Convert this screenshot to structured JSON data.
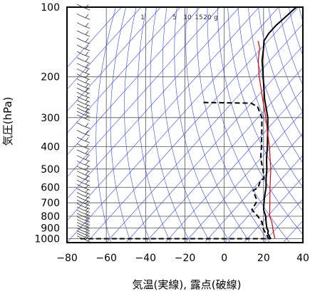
{
  "chart_data": {
    "type": "line",
    "subtype": "skew-T log-p sounding",
    "xlabel": "気温(実線), 露点(破線)",
    "ylabel": "気圧(hPa)",
    "xlim": [
      -80,
      40
    ],
    "ylim": [
      1040,
      100
    ],
    "y_scale": "log",
    "grid": true,
    "x_ticks": [
      -80,
      -60,
      -40,
      -20,
      0,
      20,
      40
    ],
    "x_tick_labels": [
      "−80",
      "−60",
      "−40",
      "−20",
      "0",
      "20",
      "40"
    ],
    "y_ticks": [
      100,
      200,
      300,
      400,
      500,
      600,
      700,
      800,
      900,
      1000
    ],
    "y_tick_labels": [
      "100",
      "200",
      "300",
      "400",
      "500",
      "600",
      "700",
      "800",
      "900",
      "1000"
    ],
    "mixing_ratio_labels": [
      "1",
      "5",
      "10",
      "15",
      "20",
      "g"
    ],
    "series": [
      {
        "role": "temperature",
        "color": "#000000",
        "dash": "solid",
        "points": [
          [
            1000,
            22
          ],
          [
            990,
            21
          ],
          [
            975,
            20
          ],
          [
            950,
            18
          ],
          [
            925,
            17
          ],
          [
            900,
            15
          ],
          [
            850,
            12
          ],
          [
            800,
            9
          ],
          [
            750,
            5
          ],
          [
            700,
            2
          ],
          [
            650,
            -1
          ],
          [
            600,
            -4
          ],
          [
            550,
            -8
          ],
          [
            500,
            -12
          ],
          [
            450,
            -17
          ],
          [
            400,
            -22
          ],
          [
            350,
            -28
          ],
          [
            300,
            -35
          ],
          [
            250,
            -45
          ],
          [
            200,
            -56
          ],
          [
            170,
            -64
          ],
          [
            150,
            -69
          ],
          [
            140,
            -72
          ],
          [
            130,
            -73
          ],
          [
            120,
            -73
          ],
          [
            110,
            -72
          ],
          [
            100,
            -71
          ]
        ]
      },
      {
        "role": "dewpoint",
        "color": "#000000",
        "dash": "dashed",
        "points": [
          [
            1000,
            -75
          ],
          [
            1000,
            21
          ],
          [
            990,
            20
          ],
          [
            975,
            19
          ],
          [
            950,
            17
          ],
          [
            925,
            15
          ],
          [
            900,
            13
          ],
          [
            850,
            10
          ],
          [
            800,
            5
          ],
          [
            750,
            -1
          ],
          [
            700,
            -2
          ],
          [
            670,
            -4
          ],
          [
            640,
            -7
          ],
          [
            620,
            -9
          ],
          [
            600,
            -8
          ],
          [
            580,
            -9
          ],
          [
            560,
            -10
          ],
          [
            550,
            -9
          ],
          [
            500,
            -14
          ],
          [
            450,
            -20
          ],
          [
            400,
            -25
          ],
          [
            350,
            -31
          ],
          [
            300,
            -38
          ],
          [
            270,
            -45
          ],
          [
            260,
            -50
          ],
          [
            258,
            -75
          ]
        ]
      },
      {
        "role": "reference-curve",
        "color": "#e00000",
        "dash": "solid",
        "points": [
          [
            1000,
            24
          ],
          [
            950,
            21
          ],
          [
            900,
            18
          ],
          [
            850,
            15
          ],
          [
            800,
            11
          ],
          [
            700,
            5
          ],
          [
            600,
            -2
          ],
          [
            500,
            -10
          ],
          [
            400,
            -21
          ],
          [
            300,
            -36
          ],
          [
            250,
            -46
          ],
          [
            200,
            -58
          ],
          [
            170,
            -66
          ],
          [
            150,
            -71
          ],
          [
            140,
            -75
          ]
        ]
      }
    ],
    "wind_barbs": {
      "color": "#333333",
      "x_position_temp": -72
    },
    "background_lines_color": "#3344ff",
    "grid_color": "#555555"
  }
}
